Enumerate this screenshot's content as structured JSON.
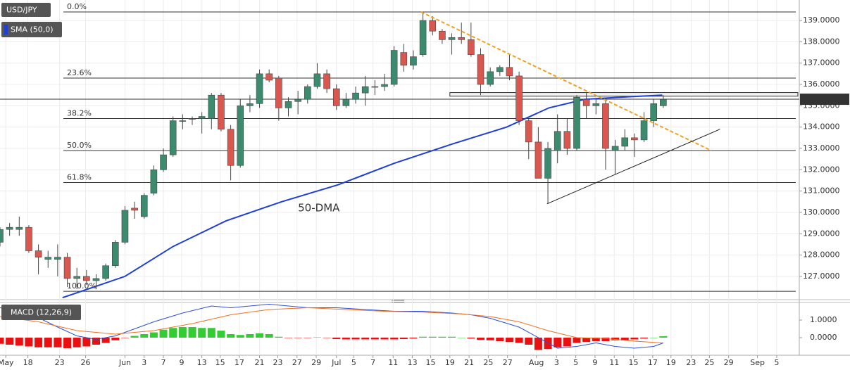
{
  "chart_data": [
    {
      "type": "candlestick",
      "title": "USD/JPY",
      "x": [
        0,
        1,
        2,
        3,
        4,
        5,
        6,
        7,
        8,
        9,
        10,
        11,
        12,
        13,
        14,
        15,
        16,
        17,
        18,
        19,
        20,
        21,
        22,
        23,
        24,
        25,
        26,
        27,
        28,
        29,
        30,
        31,
        32,
        33,
        34,
        35,
        36,
        37,
        38,
        39,
        40,
        41,
        42,
        43,
        44,
        45,
        46,
        47,
        48,
        49,
        50,
        51,
        52,
        53,
        54,
        55,
        56,
        57,
        58,
        59,
        60,
        61,
        62,
        63,
        64,
        65,
        66,
        67,
        68,
        69
      ],
      "open": [
        128.6,
        129.2,
        129.2,
        129.3,
        128.2,
        127.8,
        127.8,
        127.9,
        126.9,
        127.0,
        126.8,
        126.9,
        127.5,
        128.6,
        130.2,
        129.8,
        130.9,
        132.0,
        132.7,
        134.3,
        134.4,
        134.4,
        134.4,
        135.5,
        133.9,
        132.2,
        135.0,
        135.1,
        136.5,
        136.3,
        134.9,
        135.2,
        135.3,
        135.9,
        136.5,
        135.8,
        135.0,
        135.3,
        135.6,
        135.9,
        135.9,
        136.0,
        137.5,
        136.9,
        137.4,
        139.0,
        138.5,
        138.1,
        138.2,
        138.1,
        137.4,
        136.0,
        136.6,
        136.8,
        136.4,
        134.3,
        133.3,
        131.6,
        132.9,
        133.8,
        133.0,
        135.3,
        135.0,
        135.1,
        132.9,
        133.1,
        133.5,
        133.4,
        134.3,
        135.0
      ],
      "high": [
        129.3,
        129.5,
        129.8,
        129.4,
        128.5,
        128.2,
        128.5,
        128.1,
        127.4,
        127.3,
        127.1,
        127.6,
        128.7,
        130.3,
        130.5,
        130.9,
        132.2,
        133.0,
        134.5,
        134.6,
        134.5,
        134.7,
        135.6,
        135.6,
        134.1,
        135.3,
        135.5,
        136.7,
        136.7,
        136.4,
        135.4,
        135.7,
        136.0,
        137.0,
        136.7,
        136.0,
        135.6,
        135.9,
        136.4,
        136.2,
        136.5,
        137.8,
        137.9,
        137.6,
        139.4,
        139.2,
        138.6,
        138.4,
        138.9,
        138.9,
        137.7,
        136.8,
        136.9,
        137.4,
        136.6,
        134.4,
        134.0,
        133.3,
        134.6,
        134.4,
        135.5,
        135.6,
        135.3,
        135.3,
        133.4,
        133.9,
        133.7,
        134.7,
        135.3,
        135.5
      ],
      "low": [
        128.4,
        128.9,
        128.9,
        128.1,
        127.1,
        127.4,
        127.0,
        126.5,
        126.4,
        126.6,
        126.4,
        126.8,
        127.4,
        128.5,
        129.7,
        129.7,
        130.8,
        131.9,
        132.6,
        133.9,
        134.1,
        133.7,
        133.9,
        133.8,
        131.5,
        132.1,
        134.7,
        134.9,
        136.1,
        134.3,
        134.5,
        134.6,
        135.1,
        135.8,
        135.6,
        134.8,
        134.9,
        135.1,
        135.0,
        135.5,
        135.7,
        135.9,
        136.6,
        136.7,
        137.3,
        138.3,
        137.9,
        137.4,
        137.9,
        137.3,
        135.5,
        135.9,
        136.4,
        136.2,
        134.1,
        132.5,
        131.6,
        130.4,
        132.3,
        132.7,
        132.9,
        134.4,
        134.6,
        132.0,
        131.8,
        132.9,
        132.6,
        133.3,
        134.0,
        134.9
      ],
      "close": [
        129.2,
        129.3,
        129.3,
        128.2,
        127.9,
        127.9,
        127.9,
        126.9,
        127.0,
        126.8,
        126.9,
        127.5,
        128.6,
        130.1,
        130.1,
        130.8,
        132.0,
        132.7,
        134.3,
        134.3,
        134.4,
        134.5,
        135.5,
        133.9,
        132.2,
        135.0,
        135.1,
        136.5,
        136.2,
        134.9,
        135.2,
        135.3,
        135.9,
        136.5,
        135.8,
        135.0,
        135.3,
        135.6,
        135.9,
        135.9,
        136.0,
        137.6,
        136.9,
        137.3,
        139.0,
        138.5,
        138.1,
        138.2,
        138.1,
        137.4,
        136.0,
        136.6,
        136.8,
        136.4,
        134.3,
        133.3,
        131.6,
        133.0,
        133.8,
        133.0,
        135.4,
        135.0,
        135.1,
        133.0,
        133.1,
        133.5,
        133.4,
        134.3,
        135.1,
        135.3
      ],
      "up_color": "#3d8b6e",
      "down_color": "#d9574f",
      "series": [
        {
          "name": "SMA (50,0)",
          "color": "#1f3fd6",
          "x": [
            6.5,
            13,
            18,
            23.5,
            29.3,
            35.2,
            41,
            47,
            52.7,
            57.1,
            60.8,
            64.5,
            68.9
          ],
          "values": [
            126.0,
            127.0,
            128.4,
            129.6,
            130.5,
            131.3,
            132.3,
            133.2,
            134.0,
            134.9,
            135.3,
            135.4,
            135.5
          ]
        }
      ],
      "annotation": {
        "text": "50-DMA",
        "x": 31,
        "y": 130.2,
        "color": "#7a4fc0"
      },
      "fib_levels": [
        {
          "label": "0.0%",
          "value": 139.4
        },
        {
          "label": "23.6%",
          "value": 136.3
        },
        {
          "label": "38.2%",
          "value": 134.4
        },
        {
          "label": "50.0%",
          "value": 132.9
        },
        {
          "label": "61.8%",
          "value": 131.4
        },
        {
          "label": "100.0%",
          "value": 126.3
        }
      ],
      "trendlines": [
        {
          "x": [
            43.8,
            74
          ],
          "y": [
            139.4,
            132.9
          ],
          "color": "#f0a020",
          "dashed": true
        },
        {
          "x": [
            56.9,
            74.9
          ],
          "y": [
            130.4,
            133.9
          ],
          "color": "#222222",
          "dashed": false
        }
      ],
      "zone": {
        "x": [
          46.8,
          83
        ],
        "y": [
          135.45,
          135.62
        ]
      },
      "last_price": {
        "value": 135.307,
        "label": "135.3070"
      },
      "xlim": [
        0,
        83.15
      ],
      "ylim": [
        126.04,
        139.96
      ],
      "yticks": [
        {
          "value": 127,
          "label": "127.0000"
        },
        {
          "value": 128,
          "label": "128.0000"
        },
        {
          "value": 129,
          "label": "129.0000"
        },
        {
          "value": 130,
          "label": "130.0000"
        },
        {
          "value": 131,
          "label": "131.0000"
        },
        {
          "value": 132,
          "label": "132.0000"
        },
        {
          "value": 133,
          "label": "133.0000"
        },
        {
          "value": 134,
          "label": "134.0000"
        },
        {
          "value": 135,
          "label": "135.0000"
        },
        {
          "value": 136,
          "label": "136.0000"
        },
        {
          "value": 137,
          "label": "137.0000"
        },
        {
          "value": 138,
          "label": "138.0000"
        },
        {
          "value": 139,
          "label": "139.0000"
        }
      ],
      "xticks": [
        {
          "value": 0.6,
          "label": "May"
        },
        {
          "value": 2.9,
          "label": "18"
        },
        {
          "value": 6.2,
          "label": "23"
        },
        {
          "value": 8.9,
          "label": "26"
        },
        {
          "value": 13,
          "label": "Jun"
        },
        {
          "value": 15,
          "label": "3"
        },
        {
          "value": 17,
          "label": "7"
        },
        {
          "value": 18.9,
          "label": "9"
        },
        {
          "value": 21,
          "label": "13"
        },
        {
          "value": 22.9,
          "label": "15"
        },
        {
          "value": 24.9,
          "label": "17"
        },
        {
          "value": 27,
          "label": "21"
        },
        {
          "value": 28.9,
          "label": "23"
        },
        {
          "value": 30.9,
          "label": "27"
        },
        {
          "value": 32.9,
          "label": "29"
        },
        {
          "value": 35,
          "label": "Jul"
        },
        {
          "value": 36.8,
          "label": "5"
        },
        {
          "value": 38.8,
          "label": "7"
        },
        {
          "value": 40.9,
          "label": "11"
        },
        {
          "value": 42.9,
          "label": "13"
        },
        {
          "value": 44.8,
          "label": "15"
        },
        {
          "value": 46.8,
          "label": "19"
        },
        {
          "value": 48.8,
          "label": "21"
        },
        {
          "value": 50.8,
          "label": "25"
        },
        {
          "value": 52.8,
          "label": "27"
        },
        {
          "value": 55.8,
          "label": "Aug"
        },
        {
          "value": 57.9,
          "label": "3"
        },
        {
          "value": 59.9,
          "label": "5"
        },
        {
          "value": 61.9,
          "label": "9"
        },
        {
          "value": 63.9,
          "label": "11"
        },
        {
          "value": 65.9,
          "label": "15"
        },
        {
          "value": 67.9,
          "label": "17"
        },
        {
          "value": 69.8,
          "label": "19"
        },
        {
          "value": 71.9,
          "label": "23"
        },
        {
          "value": 73.8,
          "label": "25"
        },
        {
          "value": 75.8,
          "label": "29"
        },
        {
          "value": 78.8,
          "label": "Sep"
        },
        {
          "value": 80.8,
          "label": "5"
        }
      ],
      "grid": true
    },
    {
      "type": "macd",
      "title": "MACD (12,26,9)",
      "histogram": [
        -0.35,
        -0.4,
        -0.45,
        -0.5,
        -0.55,
        -0.55,
        -0.55,
        -0.6,
        -0.55,
        -0.5,
        -0.4,
        -0.3,
        -0.15,
        -0.02,
        0.1,
        0.2,
        0.3,
        0.45,
        0.55,
        0.6,
        0.6,
        0.55,
        0.55,
        0.4,
        0.2,
        0.15,
        0.2,
        0.25,
        0.2,
        0.05,
        -0.02,
        -0.02,
        -0.02,
        0.02,
        -0.02,
        -0.08,
        -0.1,
        -0.1,
        -0.1,
        -0.1,
        -0.1,
        -0.1,
        -0.08,
        -0.05,
        0.05,
        0.05,
        0.05,
        0.05,
        0,
        -0.05,
        -0.12,
        -0.15,
        -0.2,
        -0.25,
        -0.3,
        -0.4,
        -0.7,
        -0.65,
        -0.55,
        -0.5,
        -0.3,
        -0.25,
        -0.2,
        -0.2,
        -0.15,
        -0.15,
        -0.1,
        -0.05,
        0,
        0.08
      ],
      "up_color": "#33cc33",
      "down_color": "#e81010",
      "series": [
        {
          "color": "#3050d0",
          "x": [
            0,
            3,
            6,
            8,
            10,
            12,
            14,
            16,
            19,
            22,
            24,
            26,
            28,
            30,
            32,
            35,
            38,
            41,
            44,
            47,
            49,
            51,
            54,
            56,
            58,
            60,
            62,
            64,
            66,
            68,
            69
          ],
          "values": [
            1.7,
            1.4,
            0.6,
            0.1,
            -0.1,
            0.1,
            0.5,
            0.9,
            1.4,
            1.8,
            1.7,
            1.8,
            1.9,
            1.8,
            1.7,
            1.7,
            1.6,
            1.5,
            1.5,
            1.4,
            1.3,
            1.1,
            0.6,
            0.0,
            -0.6,
            -0.5,
            -0.3,
            -0.5,
            -0.6,
            -0.5,
            -0.3
          ]
        },
        {
          "color": "#f07020",
          "x": [
            0,
            4,
            8,
            12,
            16,
            20,
            24,
            28,
            32,
            36,
            40,
            44,
            48,
            51,
            54,
            57,
            60,
            63,
            66,
            69
          ],
          "values": [
            1.2,
            0.9,
            0.4,
            0.2,
            0.4,
            0.8,
            1.3,
            1.6,
            1.7,
            1.6,
            1.5,
            1.45,
            1.35,
            1.2,
            0.9,
            0.4,
            0.0,
            -0.05,
            -0.2,
            -0.3
          ]
        }
      ],
      "ylim": [
        -1.0,
        1.92
      ],
      "yticks": [
        {
          "value": 0,
          "label": "0.0000"
        },
        {
          "value": 1,
          "label": "1.0000"
        }
      ]
    }
  ]
}
